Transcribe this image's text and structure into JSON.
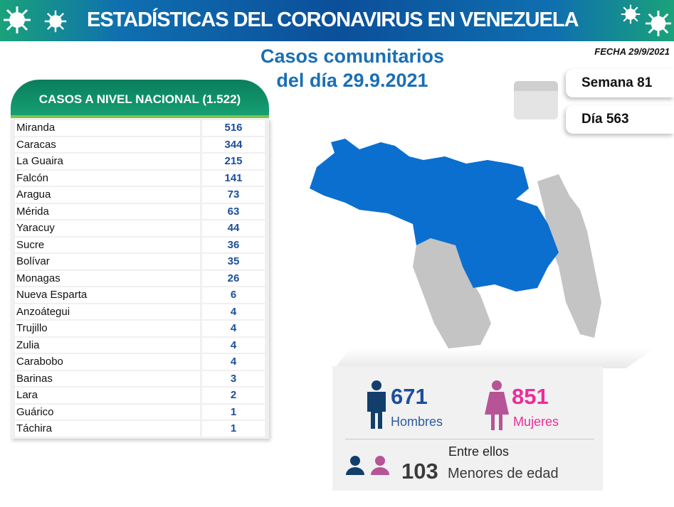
{
  "banner": {
    "title": "ESTADÍSTICAS DEL CORONAVIRUS EN VENEZUELA"
  },
  "subtitle": {
    "line1": "Casos comunitarios",
    "line2": "del día 29.9.2021"
  },
  "fecha": "FECHA 29/9/2021",
  "semana": "Semana 81",
  "dia": "Día 563",
  "table": {
    "title": "CASOS A NIVEL NACIONAL (1.522)",
    "rows": [
      {
        "name": "Miranda",
        "value": "516"
      },
      {
        "name": "Caracas",
        "value": "344"
      },
      {
        "name": "La Guaira",
        "value": "215"
      },
      {
        "name": "Falcón",
        "value": "141"
      },
      {
        "name": "Aragua",
        "value": "73"
      },
      {
        "name": "Mérida",
        "value": "63"
      },
      {
        "name": "Yaracuy",
        "value": "44"
      },
      {
        "name": "Sucre",
        "value": "36"
      },
      {
        "name": "Bolívar",
        "value": "35"
      },
      {
        "name": "Monagas",
        "value": "26"
      },
      {
        "name": "Nueva Esparta",
        "value": "6"
      },
      {
        "name": "Anzoátegui",
        "value": "4"
      },
      {
        "name": "Trujillo",
        "value": "4"
      },
      {
        "name": "Zulia",
        "value": "4"
      },
      {
        "name": "Carabobo",
        "value": "4"
      },
      {
        "name": "Barinas",
        "value": "3"
      },
      {
        "name": "Lara",
        "value": "2"
      },
      {
        "name": "Guárico",
        "value": "1"
      },
      {
        "name": "Táchira",
        "value": "1"
      }
    ]
  },
  "stats": {
    "men": "671",
    "men_label": "Hombres",
    "women": "851",
    "women_label": "Mujeres",
    "minors_intro": "Entre ellos",
    "minors": "103",
    "minors_label": "Menores de edad"
  },
  "colors": {
    "blue": "#1b4e9b",
    "pink": "#ee2c9a",
    "map_blue": "#0b6fd0",
    "map_gray": "#c4c4c4"
  }
}
